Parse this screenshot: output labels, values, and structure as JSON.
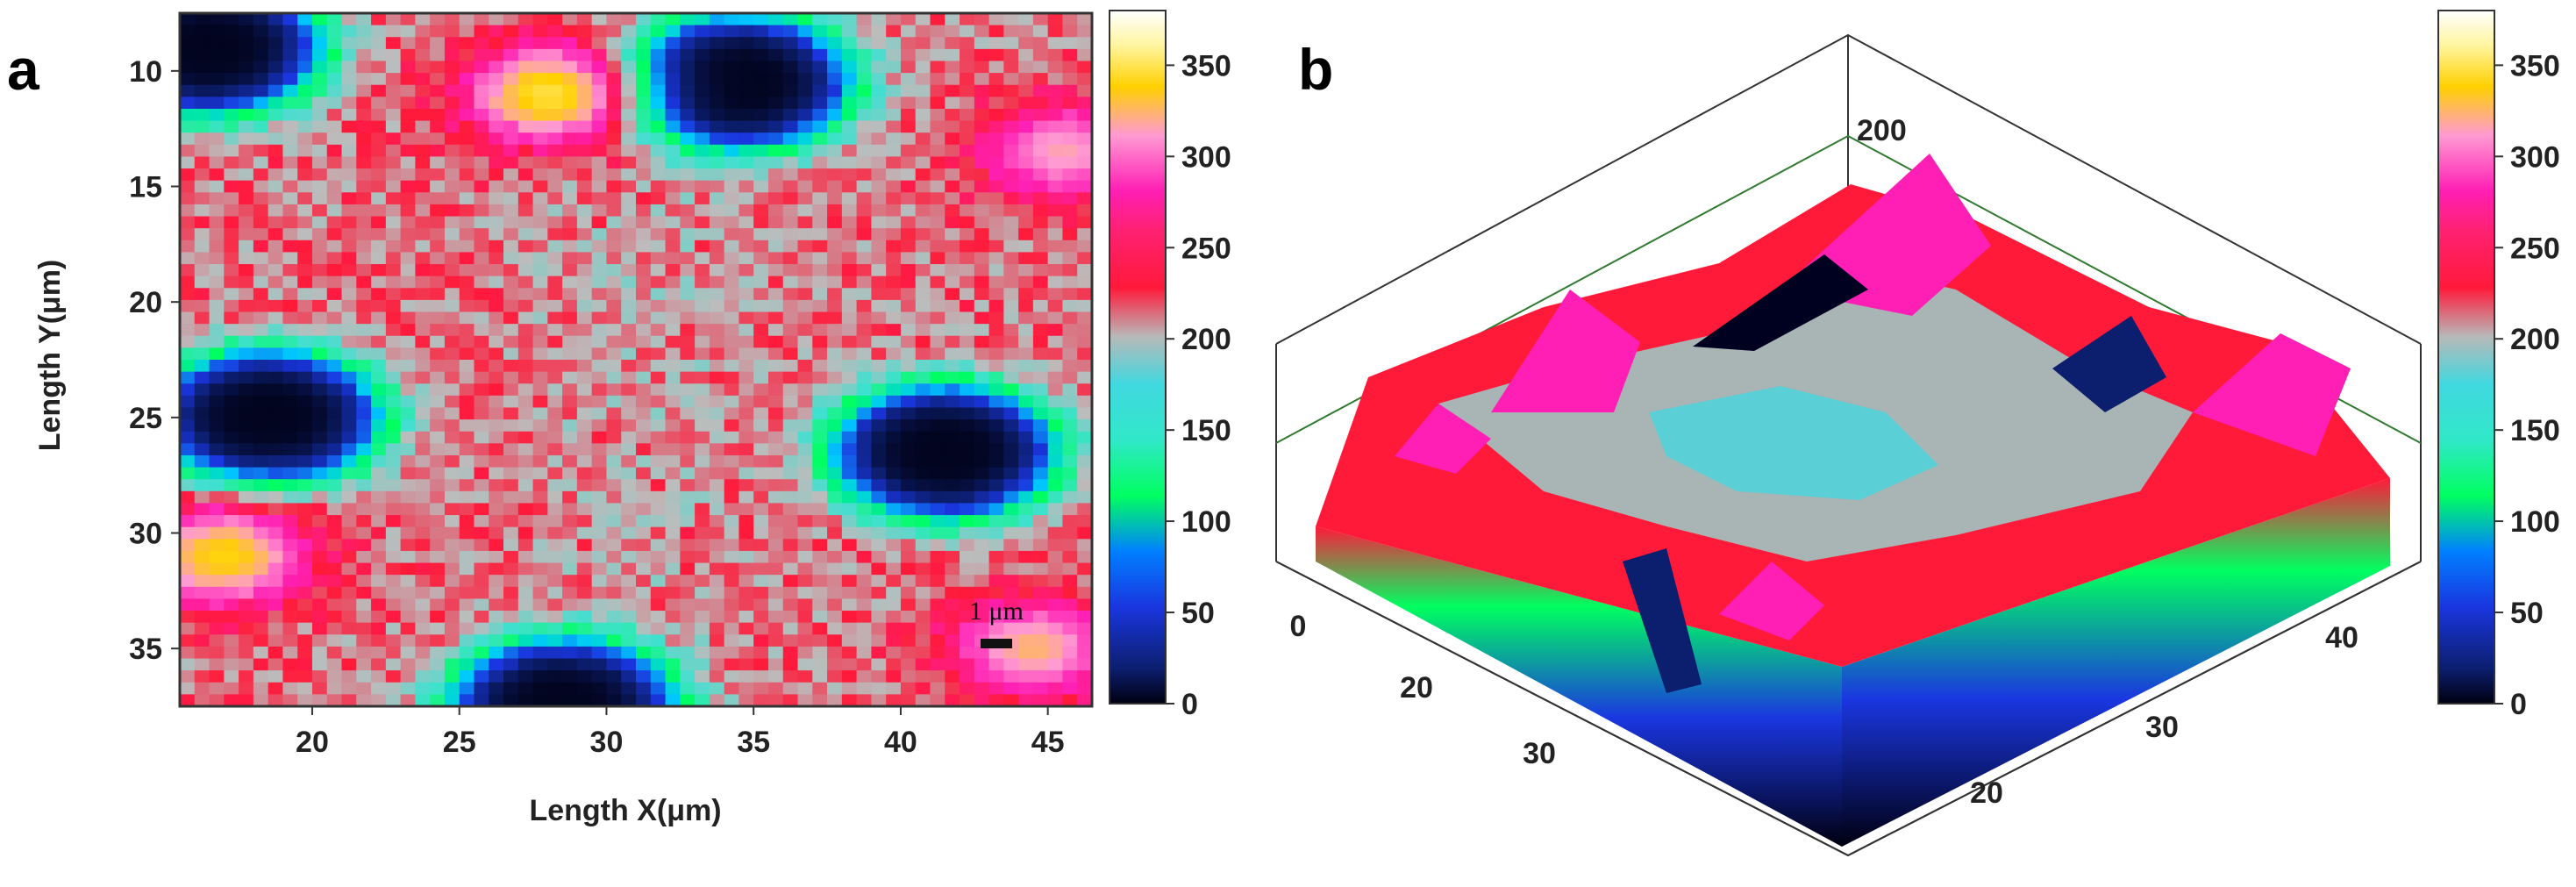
{
  "chart_data": [
    {
      "panel": "a",
      "type": "heatmap",
      "xlabel": "Length X(μm)",
      "ylabel": "Length Y(μm)",
      "x_ticks": [
        20,
        25,
        30,
        35,
        40,
        45
      ],
      "y_ticks": [
        10,
        15,
        20,
        25,
        30,
        35
      ],
      "xlim": [
        15.5,
        46.5
      ],
      "ylim": [
        37.5,
        7.5
      ],
      "colorbar_ticks": [
        0,
        50,
        100,
        150,
        200,
        250,
        300,
        350
      ],
      "colorbar_range": [
        0,
        380
      ],
      "scale_bar_label": "1 μm",
      "regions": [
        {
          "shape": "low-value pocket",
          "center": [
            34.5,
            10.5
          ],
          "value": 5
        },
        {
          "shape": "low-value pocket",
          "center": [
            18.5,
            25
          ],
          "value": 5
        },
        {
          "shape": "low-value pocket",
          "center": [
            41.5,
            26.5
          ],
          "value": 5
        },
        {
          "shape": "low-value pocket",
          "center": [
            28.5,
            37.5
          ],
          "value": 5
        },
        {
          "shape": "low-value pocket",
          "center": [
            16.5,
            9
          ],
          "value": 5
        },
        {
          "shape": "high-value hotspot",
          "center": [
            28.0,
            11.0
          ],
          "value": 330
        },
        {
          "shape": "high-value hotspot",
          "center": [
            17.0,
            31.0
          ],
          "value": 320
        },
        {
          "shape": "high-value hotspot",
          "center": [
            44.5,
            35.0
          ],
          "value": 300
        },
        {
          "shape": "high-value hotspot",
          "center": [
            45.5,
            13.5
          ],
          "value": 290
        }
      ]
    },
    {
      "panel": "b",
      "type": "surface",
      "z_tick": "200",
      "axis1_ticks": [
        "0",
        "20",
        "30"
      ],
      "axis2_ticks": [
        "20",
        "30",
        "40"
      ],
      "colorbar_ticks": [
        0,
        50,
        100,
        150,
        200,
        250,
        300,
        350
      ],
      "colorbar_range": [
        0,
        380
      ]
    }
  ],
  "colorscale": [
    "#000010",
    "#0c1e6e",
    "#1a36e0",
    "#00c8ff",
    "#00ff60",
    "#40e0d0",
    "#bcbcbc",
    "#ff1a3a",
    "#ff1fb4",
    "#ff9ad2",
    "#ffd000",
    "#fff5a0",
    "#ffffff"
  ]
}
